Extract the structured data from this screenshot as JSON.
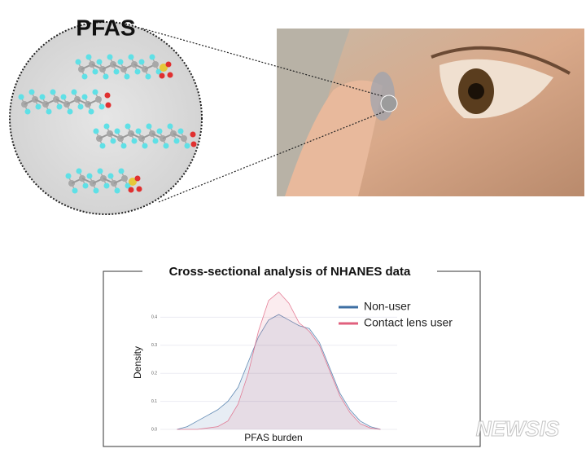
{
  "illustration": {
    "label": "PFAS"
  },
  "chart_data": {
    "type": "density",
    "title": "Cross-sectional analysis of NHANES data",
    "x_label": "PFAS burden",
    "y_label": "Density",
    "x": [
      0,
      0.5,
      1,
      1.5,
      2,
      2.5,
      3,
      3.5,
      4,
      4.5,
      5,
      5.5,
      6,
      6.5,
      7,
      7.5,
      8,
      8.5,
      9,
      9.5,
      10
    ],
    "xlim": [
      -0.5,
      10.5
    ],
    "ylim": [
      0,
      0.5
    ],
    "yticks": [
      {
        "value": 0,
        "label": "0.0"
      },
      {
        "value": 0.1,
        "label": "0.1"
      },
      {
        "value": 0.2,
        "label": "0.2"
      },
      {
        "value": 0.3,
        "label": "0.3"
      },
      {
        "value": 0.4,
        "label": "0.4"
      }
    ],
    "grid": true,
    "legend": "top-right",
    "series": [
      {
        "name": "Non-user",
        "color": "#3d6fa3",
        "values": [
          0,
          0.01,
          0.03,
          0.05,
          0.07,
          0.1,
          0.15,
          0.24,
          0.33,
          0.39,
          0.41,
          0.39,
          0.37,
          0.36,
          0.31,
          0.22,
          0.13,
          0.07,
          0.03,
          0.01,
          0
        ]
      },
      {
        "name": "Contact lens user",
        "color": "#e0607e",
        "values": [
          0,
          0,
          0,
          0.005,
          0.01,
          0.03,
          0.09,
          0.2,
          0.35,
          0.46,
          0.49,
          0.45,
          0.38,
          0.35,
          0.3,
          0.21,
          0.12,
          0.06,
          0.02,
          0.005,
          0
        ]
      }
    ]
  },
  "watermark": "NEWSIS"
}
